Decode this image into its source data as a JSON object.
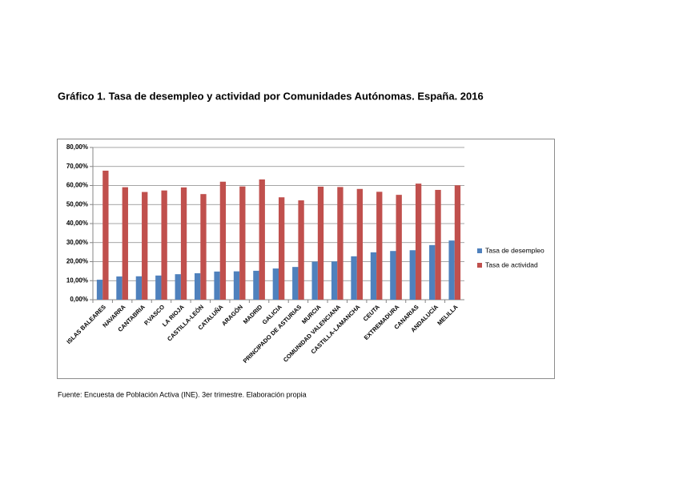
{
  "chart_data": {
    "type": "bar",
    "title": "Gráfico 1. Tasa de desempleo y actividad por Comunidades Autónomas. España. 2016",
    "source": "Fuente: Encuesta de Población Activa (INE). 3er trimestre. Elaboración propia",
    "categories": [
      "ISLAS BALEARES",
      "NAVARRA",
      "CANTABRIA",
      "P.VASCO",
      "LA RIOJA",
      "CASTILLA-LEÓN",
      "CATALUÑA",
      "ARAGÓN",
      "MADRID",
      "GALICIA",
      "PRINCIPADO DE ASTURIAS",
      "MURCIA",
      "COMUNIDAD VALENCIANA",
      "CASTILLA-LAMANCHA",
      "CEUTA",
      "EXTREMADURA",
      "CANARIAS",
      "ANDALUCÍA",
      "MELILLA"
    ],
    "series": [
      {
        "name": "Tasa de desempleo",
        "color": "#4f81bd",
        "values": [
          10.5,
          12.2,
          12.3,
          12.7,
          13.4,
          13.9,
          14.8,
          14.9,
          15.2,
          16.4,
          17.2,
          20.0,
          20.1,
          22.8,
          24.9,
          25.6,
          26.0,
          28.7,
          31.1
        ]
      },
      {
        "name": "Tasa de actividad",
        "color": "#c0504d",
        "values": [
          67.8,
          59.1,
          56.6,
          57.4,
          59.0,
          55.5,
          62.0,
          59.5,
          63.2,
          53.8,
          52.2,
          59.4,
          59.2,
          58.2,
          56.7,
          55.1,
          61.0,
          57.7,
          60.1
        ]
      }
    ],
    "ylim": [
      0,
      80
    ],
    "yticks": [
      {
        "value": 0,
        "label": "0,00%"
      },
      {
        "value": 10,
        "label": "10,00%"
      },
      {
        "value": 20,
        "label": "20,00%"
      },
      {
        "value": 30,
        "label": "30,00%"
      },
      {
        "value": 40,
        "label": "40,00%"
      },
      {
        "value": 50,
        "label": "50,00%"
      },
      {
        "value": 60,
        "label": "60,00%"
      },
      {
        "value": 70,
        "label": "70,00%"
      },
      {
        "value": 80,
        "label": "80,00%"
      }
    ],
    "grid": true,
    "legend": "right"
  }
}
